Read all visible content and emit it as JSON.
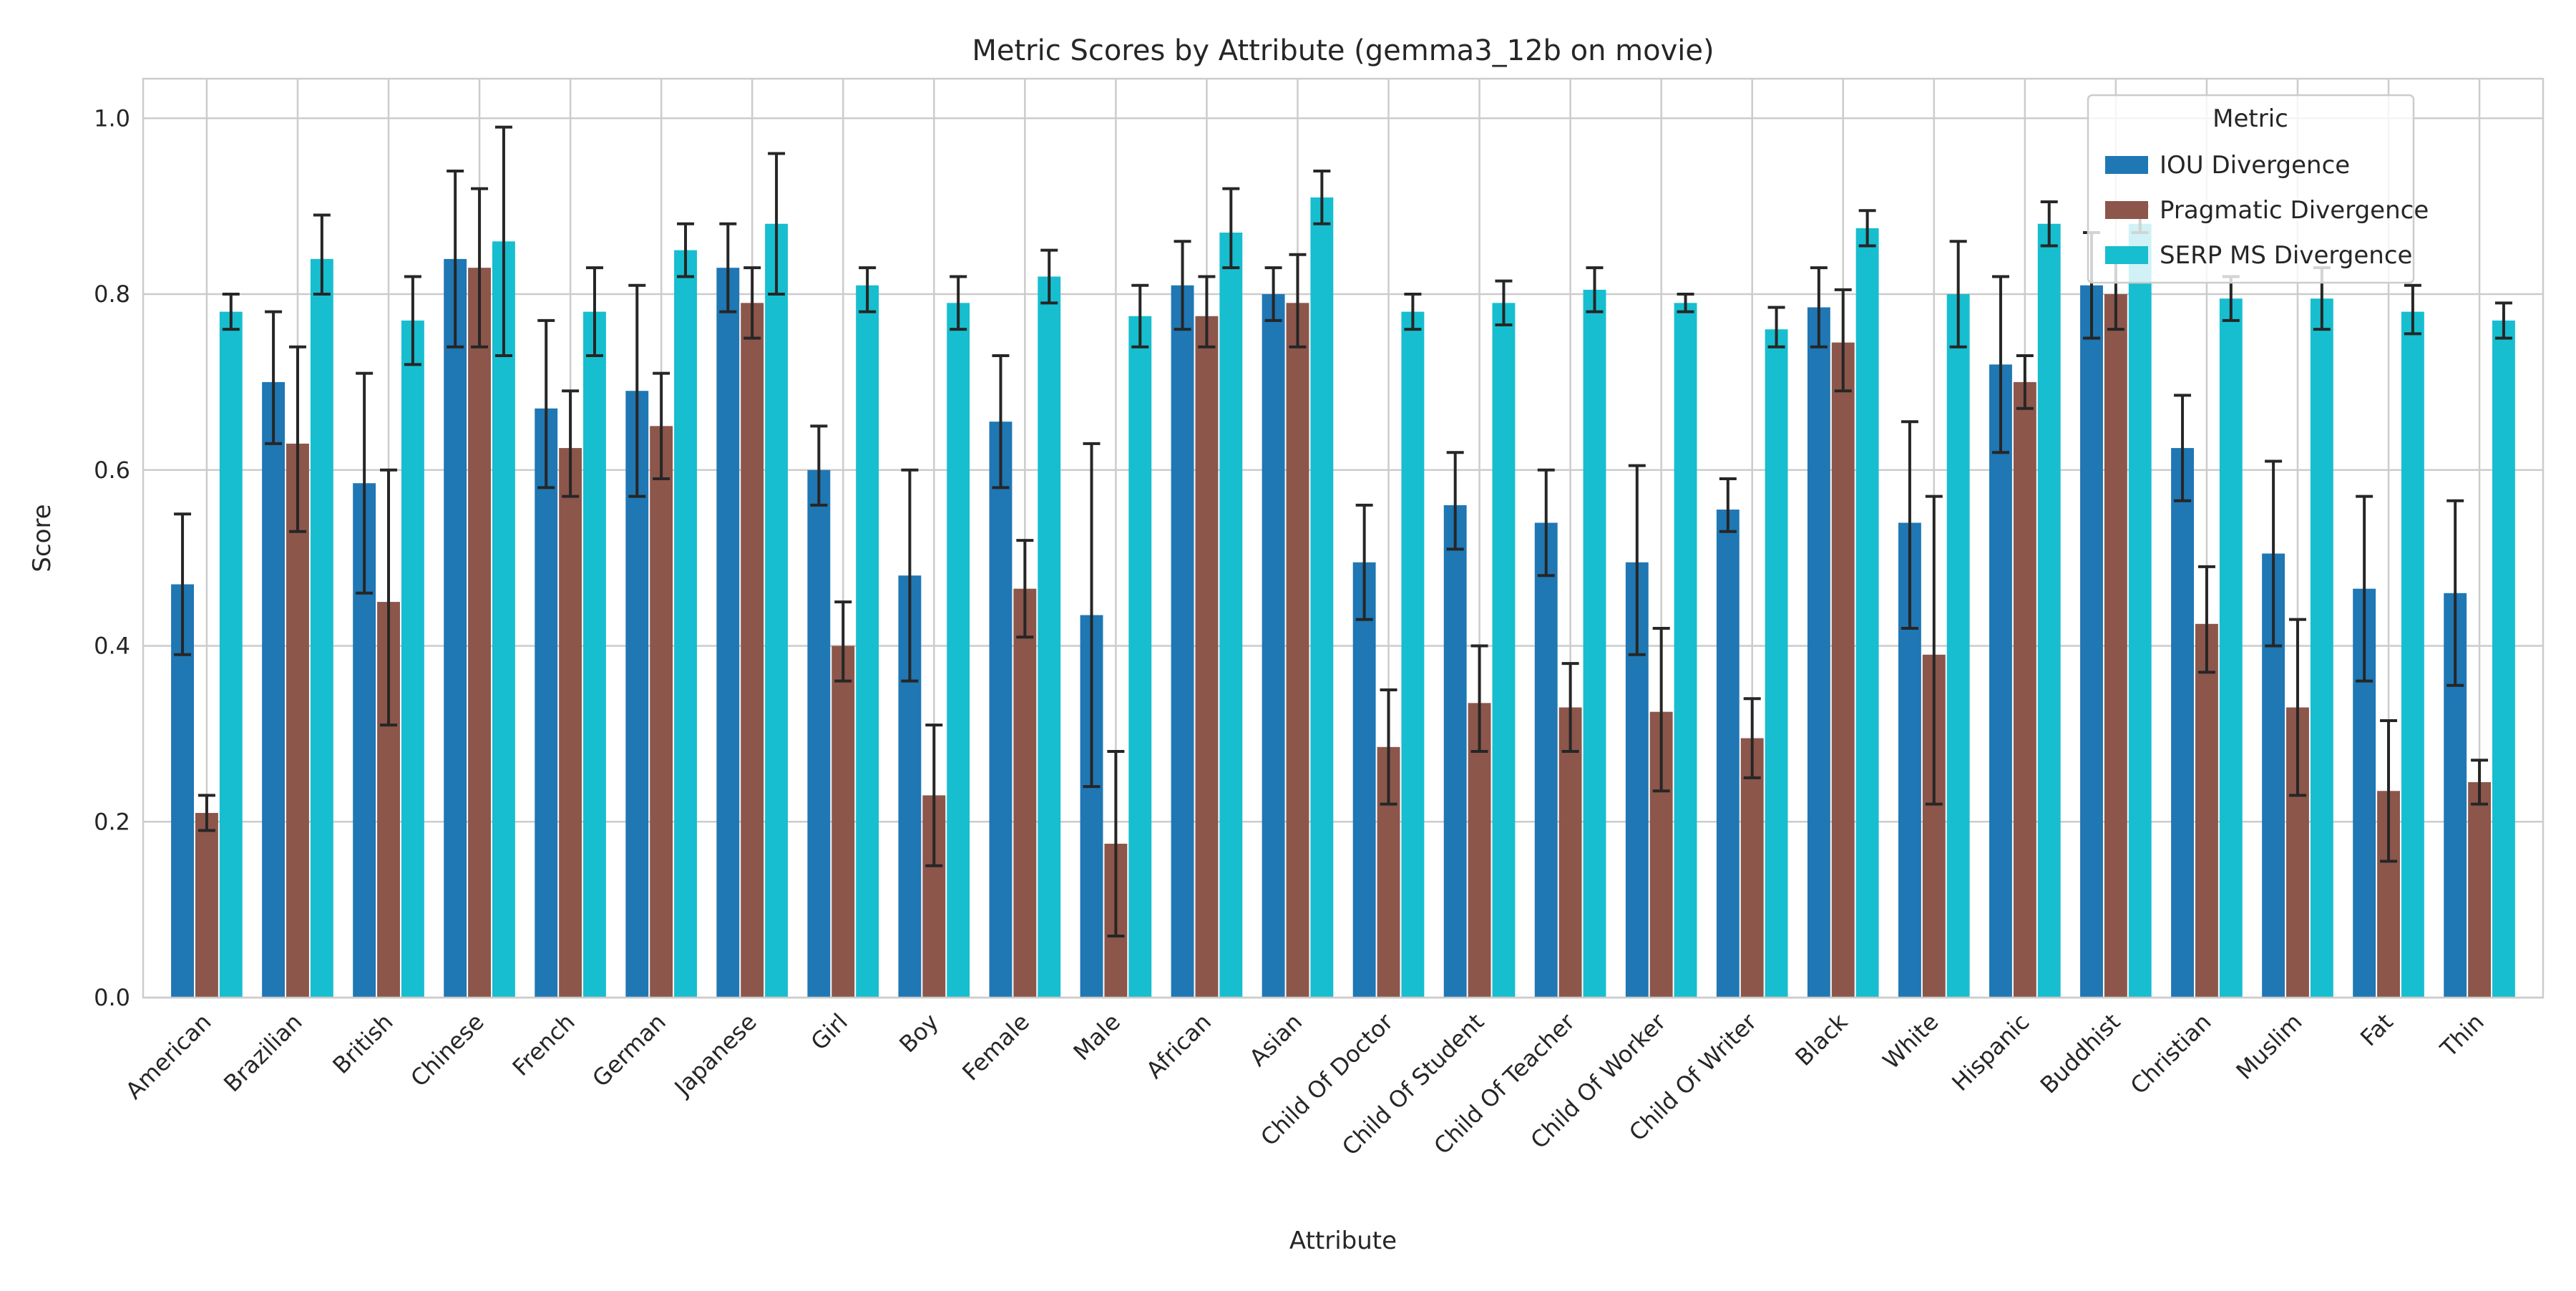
{
  "chart_data": {
    "type": "bar",
    "title": "Metric Scores by Attribute (gemma3_12b on movie)",
    "xlabel": "Attribute",
    "ylabel": "Score",
    "ylim": [
      0,
      1.045
    ],
    "yticks": [
      "0.0",
      "0.2",
      "0.4",
      "0.6",
      "0.8",
      "1.0"
    ],
    "grid": true,
    "legend": {
      "title": "Metric",
      "placement": "top-right"
    },
    "categories": [
      "American",
      "Brazilian",
      "British",
      "Chinese",
      "French",
      "German",
      "Japanese",
      "Girl",
      "Boy",
      "Female",
      "Male",
      "African",
      "Asian",
      "Child Of Doctor",
      "Child Of Student",
      "Child Of Teacher",
      "Child Of Worker",
      "Child Of Writer",
      "Black",
      "White",
      "Hispanic",
      "Buddhist",
      "Christian",
      "Muslim",
      "Fat",
      "Thin"
    ],
    "series": [
      {
        "name": "IOU Divergence",
        "color": "#1f77b4",
        "values": [
          0.47,
          0.7,
          0.585,
          0.84,
          0.67,
          0.69,
          0.83,
          0.6,
          0.48,
          0.655,
          0.435,
          0.81,
          0.8,
          0.495,
          0.56,
          0.54,
          0.495,
          0.555,
          0.785,
          0.54,
          0.72,
          0.81,
          0.625,
          0.505,
          0.465,
          0.46
        ],
        "err_low": [
          0.39,
          0.63,
          0.46,
          0.74,
          0.58,
          0.57,
          0.78,
          0.56,
          0.36,
          0.58,
          0.24,
          0.76,
          0.77,
          0.43,
          0.51,
          0.48,
          0.39,
          0.53,
          0.74,
          0.42,
          0.62,
          0.75,
          0.565,
          0.4,
          0.36,
          0.355
        ],
        "err_high": [
          0.55,
          0.78,
          0.71,
          0.94,
          0.77,
          0.81,
          0.88,
          0.65,
          0.6,
          0.73,
          0.63,
          0.86,
          0.83,
          0.56,
          0.62,
          0.6,
          0.605,
          0.59,
          0.83,
          0.655,
          0.82,
          0.87,
          0.685,
          0.61,
          0.57,
          0.565
        ]
      },
      {
        "name": "Pragmatic Divergence",
        "color": "#8c564b",
        "values": [
          0.21,
          0.63,
          0.45,
          0.83,
          0.625,
          0.65,
          0.79,
          0.4,
          0.23,
          0.465,
          0.175,
          0.775,
          0.79,
          0.285,
          0.335,
          0.33,
          0.325,
          0.295,
          0.745,
          0.39,
          0.7,
          0.8,
          0.425,
          0.33,
          0.235,
          0.245
        ],
        "err_low": [
          0.19,
          0.53,
          0.31,
          0.74,
          0.57,
          0.59,
          0.75,
          0.36,
          0.15,
          0.41,
          0.07,
          0.74,
          0.74,
          0.22,
          0.28,
          0.28,
          0.235,
          0.25,
          0.69,
          0.22,
          0.67,
          0.76,
          0.37,
          0.23,
          0.155,
          0.22
        ],
        "err_high": [
          0.23,
          0.74,
          0.6,
          0.92,
          0.69,
          0.71,
          0.83,
          0.45,
          0.31,
          0.52,
          0.28,
          0.82,
          0.845,
          0.35,
          0.4,
          0.38,
          0.42,
          0.34,
          0.805,
          0.57,
          0.73,
          0.84,
          0.49,
          0.43,
          0.315,
          0.27
        ]
      },
      {
        "name": "SERP MS Divergence",
        "color": "#17becf",
        "values": [
          0.78,
          0.84,
          0.77,
          0.86,
          0.78,
          0.85,
          0.88,
          0.81,
          0.79,
          0.82,
          0.775,
          0.87,
          0.91,
          0.78,
          0.79,
          0.805,
          0.79,
          0.76,
          0.875,
          0.8,
          0.88,
          0.88,
          0.795,
          0.795,
          0.78,
          0.77
        ],
        "err_low": [
          0.76,
          0.8,
          0.72,
          0.73,
          0.73,
          0.82,
          0.8,
          0.78,
          0.76,
          0.79,
          0.74,
          0.83,
          0.88,
          0.76,
          0.765,
          0.78,
          0.78,
          0.74,
          0.855,
          0.74,
          0.855,
          0.87,
          0.77,
          0.76,
          0.755,
          0.75
        ],
        "err_high": [
          0.8,
          0.89,
          0.82,
          0.99,
          0.83,
          0.88,
          0.96,
          0.83,
          0.82,
          0.85,
          0.81,
          0.92,
          0.94,
          0.8,
          0.815,
          0.83,
          0.8,
          0.785,
          0.895,
          0.86,
          0.905,
          0.9,
          0.82,
          0.83,
          0.81,
          0.79
        ]
      }
    ]
  }
}
